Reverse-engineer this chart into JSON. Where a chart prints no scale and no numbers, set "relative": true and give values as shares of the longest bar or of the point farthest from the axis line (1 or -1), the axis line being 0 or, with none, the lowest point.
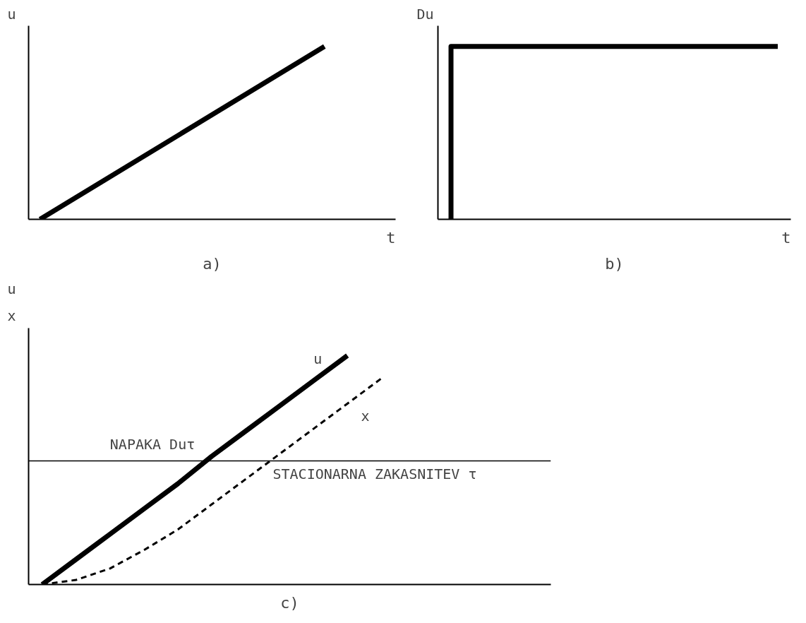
{
  "chart_data": [
    {
      "type": "line",
      "title": "a)",
      "xlabel": "t",
      "ylabel": "u",
      "relative": true,
      "categories": [
        null,
        null
      ],
      "values": [
        0,
        1
      ],
      "color": "#000000",
      "line_style": "solid",
      "grid": false,
      "legend": false
    },
    {
      "type": "step",
      "title": "b)",
      "xlabel": "t",
      "ylabel": "Du",
      "relative": true,
      "categories": [
        null,
        null
      ],
      "values": [
        0,
        1
      ],
      "color": "#000000",
      "line_style": "solid",
      "grid": false,
      "legend": false
    },
    {
      "type": "line",
      "title": "c)",
      "ylabel": "u\nx",
      "relative": true,
      "categories": [
        null,
        null,
        null,
        null,
        null,
        null,
        null,
        null,
        null,
        null,
        null
      ],
      "series": [
        {
          "name": "u",
          "color": "#000000",
          "line_style": "solid",
          "values": [
            0,
            0.11,
            0.22,
            0.33,
            0.44,
            0.56,
            0.67,
            0.78,
            0.89,
            1,
            null
          ]
        },
        {
          "name": "x",
          "color": "#000000",
          "line_style": "dashed",
          "values": [
            0,
            0.02,
            0.07,
            0.15,
            0.24,
            0.35,
            0.46,
            0.57,
            0.68,
            0.79,
            0.9
          ]
        }
      ],
      "ref_lines": [
        {
          "axis": "y",
          "value": 0.54,
          "label": "STACIONARNA ZAKASNITEV τ"
        }
      ],
      "annotations": [
        "NAPAKA Duτ"
      ],
      "grid": false,
      "legend": false
    }
  ]
}
